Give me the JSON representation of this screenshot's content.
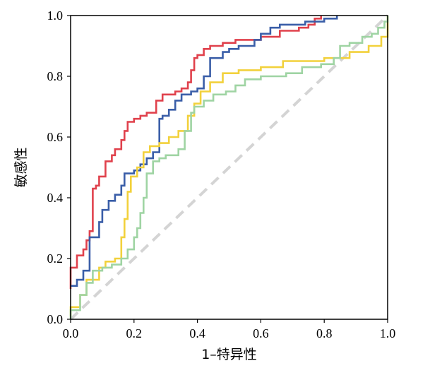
{
  "chart_data": {
    "type": "line",
    "title": "",
    "xlabel": "1–特异性",
    "ylabel": "敏感性",
    "xlim": [
      0,
      1
    ],
    "ylim": [
      0,
      1
    ],
    "x_ticks": [
      "0.0",
      "0.2",
      "0.4",
      "0.6",
      "0.8",
      "1.0"
    ],
    "y_ticks": [
      "0.0",
      "0.2",
      "0.4",
      "0.6",
      "0.8",
      "1.0"
    ],
    "grid": false,
    "legend": "none",
    "reference_line": {
      "points": [
        [
          0,
          0
        ],
        [
          1,
          1
        ]
      ],
      "color": "#d4d4d4",
      "style": "dashed"
    },
    "series": [
      {
        "color": "#e0414c",
        "points": [
          [
            0,
            0.1
          ],
          [
            0,
            0.17
          ],
          [
            0.02,
            0.17
          ],
          [
            0.02,
            0.21
          ],
          [
            0.04,
            0.21
          ],
          [
            0.04,
            0.23
          ],
          [
            0.05,
            0.23
          ],
          [
            0.05,
            0.26
          ],
          [
            0.06,
            0.26
          ],
          [
            0.06,
            0.29
          ],
          [
            0.07,
            0.29
          ],
          [
            0.07,
            0.43
          ],
          [
            0.08,
            0.43
          ],
          [
            0.08,
            0.44
          ],
          [
            0.09,
            0.44
          ],
          [
            0.09,
            0.47
          ],
          [
            0.11,
            0.47
          ],
          [
            0.11,
            0.52
          ],
          [
            0.13,
            0.52
          ],
          [
            0.13,
            0.54
          ],
          [
            0.14,
            0.54
          ],
          [
            0.14,
            0.56
          ],
          [
            0.16,
            0.56
          ],
          [
            0.16,
            0.59
          ],
          [
            0.17,
            0.59
          ],
          [
            0.17,
            0.62
          ],
          [
            0.18,
            0.62
          ],
          [
            0.18,
            0.65
          ],
          [
            0.2,
            0.65
          ],
          [
            0.2,
            0.66
          ],
          [
            0.22,
            0.66
          ],
          [
            0.22,
            0.67
          ],
          [
            0.24,
            0.67
          ],
          [
            0.24,
            0.68
          ],
          [
            0.27,
            0.68
          ],
          [
            0.27,
            0.72
          ],
          [
            0.29,
            0.72
          ],
          [
            0.29,
            0.74
          ],
          [
            0.33,
            0.74
          ],
          [
            0.33,
            0.75
          ],
          [
            0.35,
            0.75
          ],
          [
            0.35,
            0.76
          ],
          [
            0.37,
            0.76
          ],
          [
            0.37,
            0.78
          ],
          [
            0.38,
            0.78
          ],
          [
            0.38,
            0.82
          ],
          [
            0.39,
            0.82
          ],
          [
            0.39,
            0.86
          ],
          [
            0.4,
            0.86
          ],
          [
            0.4,
            0.87
          ],
          [
            0.42,
            0.87
          ],
          [
            0.42,
            0.89
          ],
          [
            0.44,
            0.89
          ],
          [
            0.44,
            0.9
          ],
          [
            0.48,
            0.9
          ],
          [
            0.48,
            0.91
          ],
          [
            0.52,
            0.91
          ],
          [
            0.52,
            0.92
          ],
          [
            0.6,
            0.92
          ],
          [
            0.6,
            0.93
          ],
          [
            0.66,
            0.93
          ],
          [
            0.66,
            0.95
          ],
          [
            0.72,
            0.95
          ],
          [
            0.72,
            0.96
          ],
          [
            0.75,
            0.96
          ],
          [
            0.75,
            0.97
          ],
          [
            0.77,
            0.97
          ],
          [
            0.77,
            0.99
          ],
          [
            0.79,
            0.99
          ],
          [
            0.79,
            1.0
          ]
        ]
      },
      {
        "color": "#3a5ea8",
        "points": [
          [
            0,
            0.11
          ],
          [
            0.02,
            0.11
          ],
          [
            0.02,
            0.13
          ],
          [
            0.04,
            0.13
          ],
          [
            0.04,
            0.16
          ],
          [
            0.06,
            0.16
          ],
          [
            0.06,
            0.27
          ],
          [
            0.09,
            0.27
          ],
          [
            0.09,
            0.32
          ],
          [
            0.1,
            0.32
          ],
          [
            0.1,
            0.36
          ],
          [
            0.12,
            0.36
          ],
          [
            0.12,
            0.39
          ],
          [
            0.14,
            0.39
          ],
          [
            0.14,
            0.41
          ],
          [
            0.16,
            0.41
          ],
          [
            0.16,
            0.44
          ],
          [
            0.17,
            0.44
          ],
          [
            0.17,
            0.48
          ],
          [
            0.2,
            0.48
          ],
          [
            0.2,
            0.49
          ],
          [
            0.22,
            0.49
          ],
          [
            0.22,
            0.51
          ],
          [
            0.24,
            0.51
          ],
          [
            0.24,
            0.53
          ],
          [
            0.26,
            0.53
          ],
          [
            0.26,
            0.55
          ],
          [
            0.28,
            0.55
          ],
          [
            0.28,
            0.66
          ],
          [
            0.29,
            0.66
          ],
          [
            0.29,
            0.67
          ],
          [
            0.31,
            0.67
          ],
          [
            0.31,
            0.69
          ],
          [
            0.33,
            0.69
          ],
          [
            0.33,
            0.72
          ],
          [
            0.35,
            0.72
          ],
          [
            0.35,
            0.74
          ],
          [
            0.38,
            0.74
          ],
          [
            0.38,
            0.75
          ],
          [
            0.4,
            0.75
          ],
          [
            0.4,
            0.76
          ],
          [
            0.42,
            0.76
          ],
          [
            0.42,
            0.8
          ],
          [
            0.44,
            0.8
          ],
          [
            0.44,
            0.86
          ],
          [
            0.48,
            0.86
          ],
          [
            0.48,
            0.88
          ],
          [
            0.5,
            0.88
          ],
          [
            0.5,
            0.89
          ],
          [
            0.53,
            0.89
          ],
          [
            0.53,
            0.9
          ],
          [
            0.58,
            0.9
          ],
          [
            0.58,
            0.92
          ],
          [
            0.6,
            0.92
          ],
          [
            0.6,
            0.94
          ],
          [
            0.63,
            0.94
          ],
          [
            0.63,
            0.96
          ],
          [
            0.66,
            0.96
          ],
          [
            0.66,
            0.97
          ],
          [
            0.74,
            0.97
          ],
          [
            0.74,
            0.98
          ],
          [
            0.8,
            0.98
          ],
          [
            0.8,
            0.99
          ],
          [
            0.84,
            0.99
          ],
          [
            0.84,
            1.0
          ]
        ]
      },
      {
        "color": "#f2d13c",
        "points": [
          [
            0,
            0.01
          ],
          [
            0,
            0.04
          ],
          [
            0.03,
            0.04
          ],
          [
            0.03,
            0.08
          ],
          [
            0.05,
            0.08
          ],
          [
            0.05,
            0.13
          ],
          [
            0.09,
            0.13
          ],
          [
            0.09,
            0.17
          ],
          [
            0.11,
            0.17
          ],
          [
            0.11,
            0.19
          ],
          [
            0.14,
            0.19
          ],
          [
            0.14,
            0.2
          ],
          [
            0.16,
            0.2
          ],
          [
            0.16,
            0.27
          ],
          [
            0.17,
            0.27
          ],
          [
            0.17,
            0.33
          ],
          [
            0.18,
            0.33
          ],
          [
            0.18,
            0.42
          ],
          [
            0.19,
            0.42
          ],
          [
            0.19,
            0.47
          ],
          [
            0.21,
            0.47
          ],
          [
            0.21,
            0.5
          ],
          [
            0.23,
            0.5
          ],
          [
            0.23,
            0.55
          ],
          [
            0.25,
            0.55
          ],
          [
            0.25,
            0.57
          ],
          [
            0.28,
            0.57
          ],
          [
            0.28,
            0.58
          ],
          [
            0.31,
            0.58
          ],
          [
            0.31,
            0.6
          ],
          [
            0.34,
            0.6
          ],
          [
            0.34,
            0.62
          ],
          [
            0.37,
            0.62
          ],
          [
            0.37,
            0.67
          ],
          [
            0.39,
            0.67
          ],
          [
            0.39,
            0.71
          ],
          [
            0.41,
            0.71
          ],
          [
            0.41,
            0.75
          ],
          [
            0.44,
            0.75
          ],
          [
            0.44,
            0.78
          ],
          [
            0.48,
            0.78
          ],
          [
            0.48,
            0.81
          ],
          [
            0.53,
            0.81
          ],
          [
            0.53,
            0.82
          ],
          [
            0.6,
            0.82
          ],
          [
            0.6,
            0.83
          ],
          [
            0.67,
            0.83
          ],
          [
            0.67,
            0.85
          ],
          [
            0.8,
            0.85
          ],
          [
            0.8,
            0.86
          ],
          [
            0.88,
            0.86
          ],
          [
            0.88,
            0.88
          ],
          [
            0.94,
            0.88
          ],
          [
            0.94,
            0.9
          ],
          [
            0.98,
            0.9
          ],
          [
            0.98,
            0.93
          ],
          [
            1.0,
            0.93
          ],
          [
            1.0,
            1.0
          ]
        ]
      },
      {
        "color": "#9fd4a3",
        "points": [
          [
            0,
            0
          ],
          [
            0,
            0.03
          ],
          [
            0.03,
            0.03
          ],
          [
            0.03,
            0.08
          ],
          [
            0.05,
            0.08
          ],
          [
            0.05,
            0.12
          ],
          [
            0.07,
            0.12
          ],
          [
            0.07,
            0.16
          ],
          [
            0.1,
            0.16
          ],
          [
            0.1,
            0.17
          ],
          [
            0.13,
            0.17
          ],
          [
            0.13,
            0.18
          ],
          [
            0.16,
            0.18
          ],
          [
            0.16,
            0.2
          ],
          [
            0.18,
            0.2
          ],
          [
            0.18,
            0.23
          ],
          [
            0.2,
            0.23
          ],
          [
            0.2,
            0.27
          ],
          [
            0.21,
            0.27
          ],
          [
            0.21,
            0.3
          ],
          [
            0.22,
            0.3
          ],
          [
            0.22,
            0.35
          ],
          [
            0.23,
            0.35
          ],
          [
            0.23,
            0.4
          ],
          [
            0.24,
            0.4
          ],
          [
            0.24,
            0.48
          ],
          [
            0.26,
            0.48
          ],
          [
            0.26,
            0.52
          ],
          [
            0.28,
            0.52
          ],
          [
            0.28,
            0.53
          ],
          [
            0.3,
            0.53
          ],
          [
            0.3,
            0.54
          ],
          [
            0.34,
            0.54
          ],
          [
            0.34,
            0.56
          ],
          [
            0.36,
            0.56
          ],
          [
            0.36,
            0.62
          ],
          [
            0.38,
            0.62
          ],
          [
            0.38,
            0.68
          ],
          [
            0.39,
            0.68
          ],
          [
            0.39,
            0.7
          ],
          [
            0.42,
            0.7
          ],
          [
            0.42,
            0.72
          ],
          [
            0.45,
            0.72
          ],
          [
            0.45,
            0.74
          ],
          [
            0.49,
            0.74
          ],
          [
            0.49,
            0.75
          ],
          [
            0.52,
            0.75
          ],
          [
            0.52,
            0.77
          ],
          [
            0.55,
            0.77
          ],
          [
            0.55,
            0.79
          ],
          [
            0.6,
            0.79
          ],
          [
            0.6,
            0.8
          ],
          [
            0.68,
            0.8
          ],
          [
            0.68,
            0.81
          ],
          [
            0.73,
            0.81
          ],
          [
            0.73,
            0.83
          ],
          [
            0.79,
            0.83
          ],
          [
            0.79,
            0.84
          ],
          [
            0.83,
            0.84
          ],
          [
            0.83,
            0.86
          ],
          [
            0.85,
            0.86
          ],
          [
            0.85,
            0.9
          ],
          [
            0.88,
            0.9
          ],
          [
            0.88,
            0.91
          ],
          [
            0.92,
            0.91
          ],
          [
            0.92,
            0.93
          ],
          [
            0.95,
            0.93
          ],
          [
            0.95,
            0.94
          ],
          [
            0.97,
            0.94
          ],
          [
            0.97,
            0.96
          ],
          [
            0.99,
            0.96
          ],
          [
            0.99,
            0.98
          ],
          [
            1.0,
            0.98
          ],
          [
            1.0,
            1.0
          ]
        ]
      }
    ]
  }
}
